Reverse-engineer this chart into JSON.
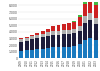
{
  "years": [
    "2009",
    "2010",
    "2011",
    "2012",
    "2013",
    "2014",
    "2015",
    "2016",
    "2017",
    "2018",
    "2019",
    "2020",
    "2021",
    "2022",
    "2023"
  ],
  "brands": {
    "Pottery Barn": [
      1120,
      1200,
      1300,
      1380,
      1460,
      1560,
      1640,
      1660,
      1690,
      1740,
      1810,
      2120,
      2820,
      3120,
      2820
    ],
    "Williams-Sonoma": [
      1390,
      1450,
      1560,
      1640,
      1720,
      1820,
      1900,
      1930,
      1920,
      1940,
      1960,
      2060,
      2560,
      2600,
      2360
    ],
    "Pottery Barn Kids Teen": [
      400,
      430,
      460,
      490,
      520,
      560,
      590,
      600,
      610,
      620,
      640,
      760,
      960,
      1060,
      980
    ],
    "West Elm": [
      100,
      165,
      230,
      320,
      430,
      560,
      690,
      800,
      920,
      1040,
      1140,
      1360,
      1880,
      2060,
      1910
    ],
    "Other": [
      0,
      0,
      0,
      0,
      0,
      0,
      0,
      0,
      0,
      0,
      90,
      190,
      390,
      490,
      440
    ]
  },
  "colors": [
    "#1a7abf",
    "#1c1c3a",
    "#b0b0b0",
    "#cc2222",
    "#44bb44"
  ],
  "yticks": [
    0,
    1000,
    2000,
    3000,
    4000,
    5000,
    6000,
    7000,
    8000
  ],
  "ytick_labels": [
    "0",
    "1,000",
    "2,000",
    "3,000",
    "4,000",
    "5,000",
    "6,000",
    "7,000",
    "8,000"
  ],
  "ylim": [
    0,
    8500
  ],
  "background_color": "#ffffff",
  "grid_color": "#e0e0e0",
  "figsize": [
    1.0,
    0.71
  ],
  "dpi": 100
}
